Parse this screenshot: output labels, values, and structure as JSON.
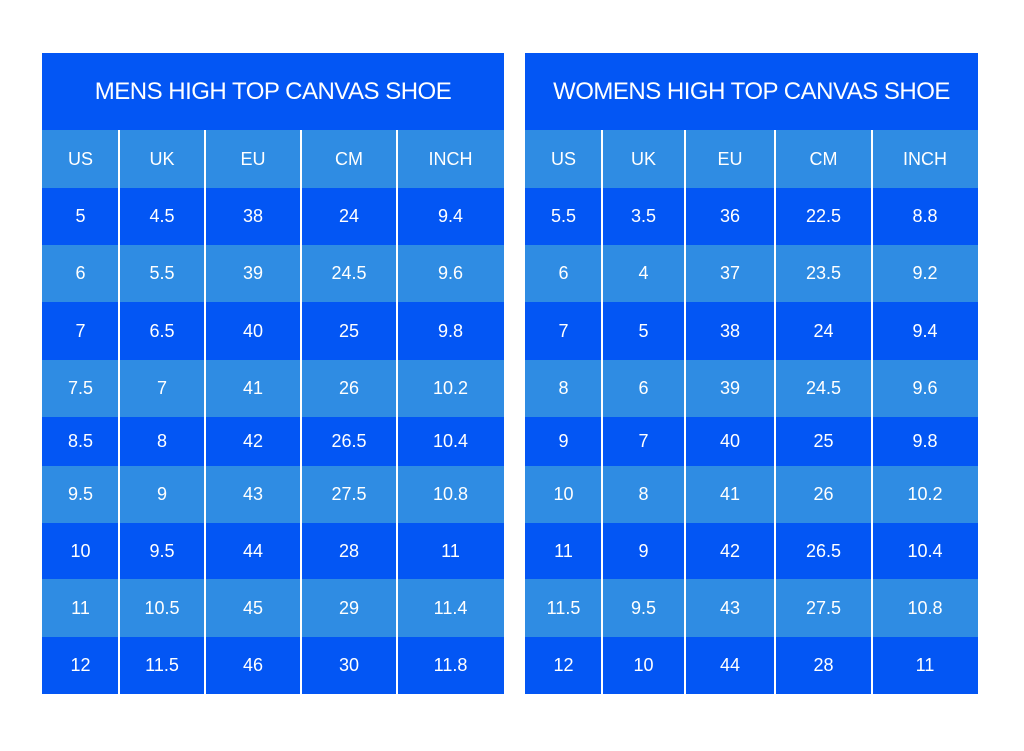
{
  "tables": [
    {
      "title": "MENS HIGH TOP CANVAS SHOE",
      "headers": [
        "US",
        "UK",
        "EU",
        "CM",
        "INCH"
      ],
      "rows": [
        [
          5,
          4.5,
          38,
          24,
          9.4
        ],
        [
          6,
          5.5,
          39,
          24.5,
          9.6
        ],
        [
          7,
          6.5,
          40,
          25,
          9.8
        ],
        [
          7.5,
          7,
          41,
          26,
          10.2
        ],
        [
          8.5,
          8,
          42,
          26.5,
          10.4
        ],
        [
          9.5,
          9,
          43,
          27.5,
          10.8
        ],
        [
          10,
          9.5,
          44,
          28,
          11
        ],
        [
          11,
          10.5,
          45,
          29,
          11.4
        ],
        [
          12,
          11.5,
          46,
          30,
          11.8
        ]
      ]
    },
    {
      "title": "WOMENS HIGH TOP CANVAS SHOE",
      "headers": [
        "US",
        "UK",
        "EU",
        "CM",
        "INCH"
      ],
      "rows": [
        [
          5.5,
          3.5,
          36,
          22.5,
          8.8
        ],
        [
          6,
          4,
          37,
          23.5,
          9.2
        ],
        [
          7,
          5,
          38,
          24,
          9.4
        ],
        [
          8,
          6,
          39,
          24.5,
          9.6
        ],
        [
          9,
          7,
          40,
          25,
          9.8
        ],
        [
          10,
          8,
          41,
          26,
          10.2
        ],
        [
          11,
          9,
          42,
          26.5,
          10.4
        ],
        [
          11.5,
          9.5,
          43,
          27.5,
          10.8
        ],
        [
          12,
          10,
          44,
          28,
          11
        ]
      ]
    }
  ]
}
